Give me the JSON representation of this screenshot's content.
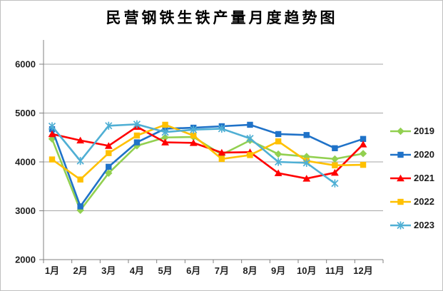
{
  "chart_data": {
    "type": "line",
    "title": "民营钢铁生铁产量月度趋势图",
    "categories": [
      "1月",
      "2月",
      "3月",
      "4月",
      "5月",
      "6月",
      "7月",
      "8月",
      "9月",
      "10月",
      "11月",
      "12月"
    ],
    "yticks": [
      2000,
      3000,
      4000,
      5000,
      6000
    ],
    "ylim": [
      2000,
      6000
    ],
    "grid": true,
    "legend_position": "right",
    "axis_color": "#808080",
    "gridline_color": "#a6a6a6",
    "tick_label_color": "#1f1f1f",
    "series": [
      {
        "name": "2019",
        "color": "#92D050",
        "marker": "diamond",
        "values": [
          4470,
          3010,
          3770,
          4330,
          4500,
          4510,
          4150,
          4440,
          4160,
          4110,
          4060,
          4170
        ]
      },
      {
        "name": "2020",
        "color": "#1F72C8",
        "marker": "square",
        "values": [
          4670,
          3090,
          3900,
          4400,
          4680,
          4700,
          4730,
          4760,
          4570,
          4550,
          4280,
          4470
        ]
      },
      {
        "name": "2021",
        "color": "#FF0000",
        "marker": "triangle",
        "values": [
          4570,
          4440,
          4330,
          4720,
          4400,
          4390,
          4190,
          4200,
          3770,
          3660,
          3780,
          4360
        ]
      },
      {
        "name": "2022",
        "color": "#FFC000",
        "marker": "square",
        "values": [
          4050,
          3640,
          4180,
          4540,
          4760,
          4540,
          4060,
          4140,
          4420,
          4020,
          3930,
          3940
        ]
      },
      {
        "name": "2023",
        "color": "#4FAFD4",
        "marker": "star",
        "values": [
          4730,
          4020,
          4740,
          4770,
          4610,
          4660,
          4680,
          4480,
          4000,
          3980,
          3560,
          null
        ]
      }
    ]
  }
}
